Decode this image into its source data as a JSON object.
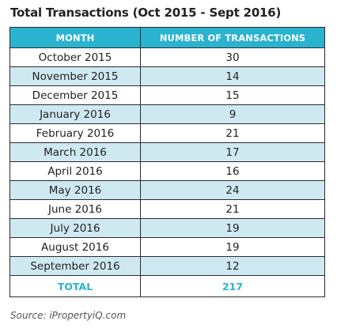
{
  "chart_data": {
    "type": "table",
    "title": "Total Transactions (Oct 2015 - Sept 2016)",
    "columns": [
      "MONTH",
      "NUMBER OF TRANSACTIONS"
    ],
    "rows": [
      {
        "month": "October 2015",
        "value": "30"
      },
      {
        "month": "November 2015",
        "value": "14"
      },
      {
        "month": "December 2015",
        "value": "15"
      },
      {
        "month": "January 2016",
        "value": "9"
      },
      {
        "month": "February 2016",
        "value": "21"
      },
      {
        "month": "March 2016",
        "value": "17"
      },
      {
        "month": "April 2016",
        "value": "16"
      },
      {
        "month": "May 2016",
        "value": "24"
      },
      {
        "month": "June 2016",
        "value": "21"
      },
      {
        "month": "July 2016",
        "value": "19"
      },
      {
        "month": "August 2016",
        "value": "19"
      },
      {
        "month": "September 2016",
        "value": "12"
      }
    ],
    "total": {
      "label": "TOTAL",
      "value": "217"
    },
    "source": "Source: iPropertyiQ.com"
  },
  "colors": {
    "header_bg": "#2ab3cf",
    "alt_row_bg": "#cfe9f3",
    "total_text": "#2ab3cf"
  }
}
